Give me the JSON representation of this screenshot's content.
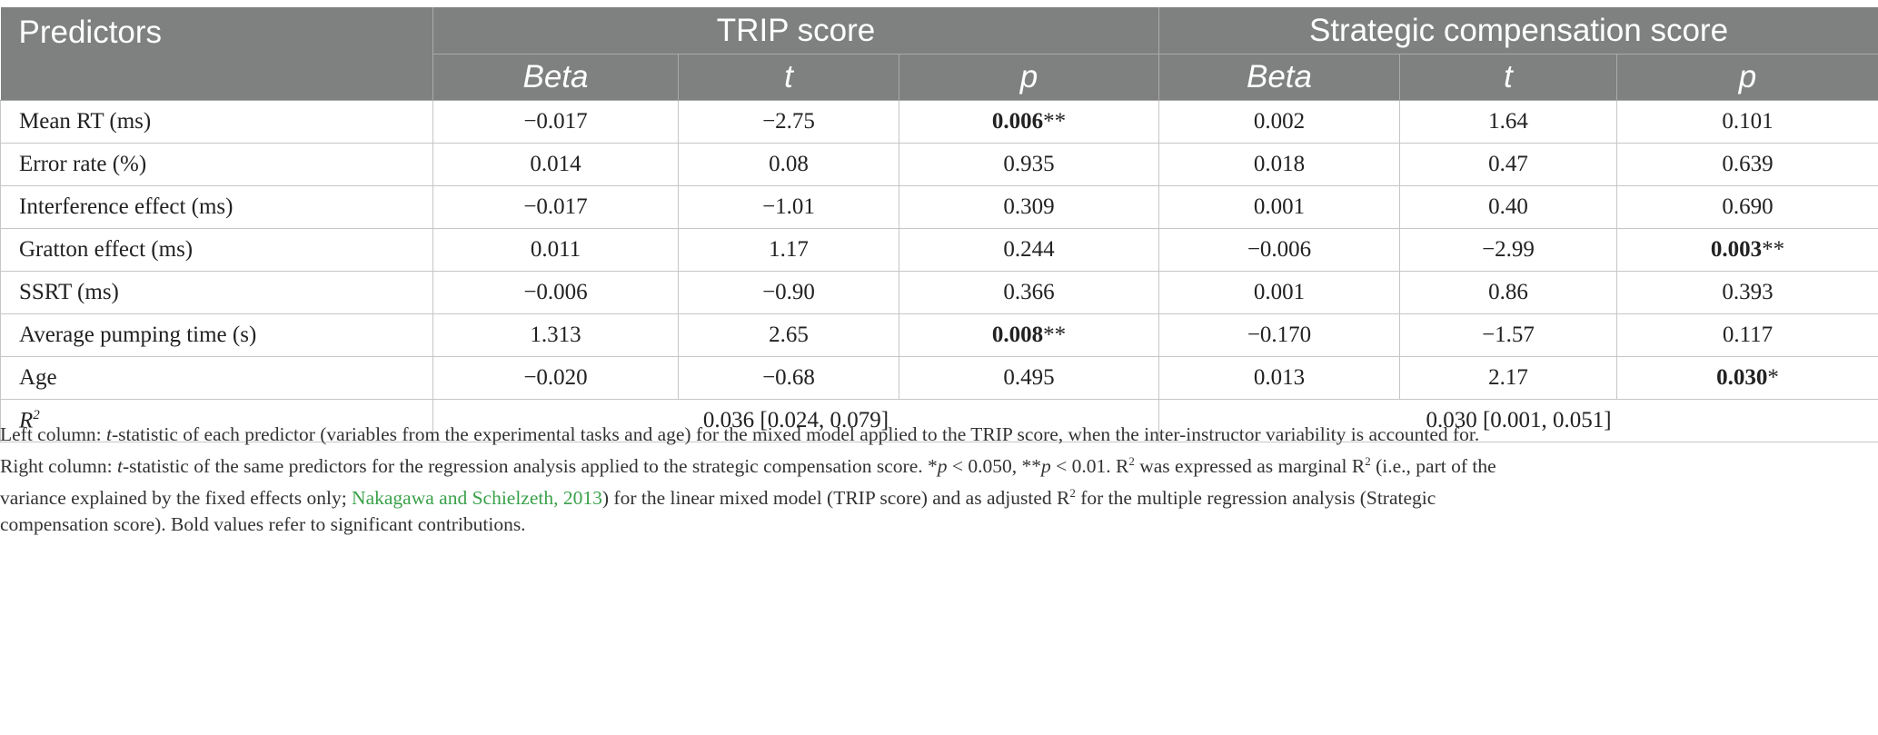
{
  "table": {
    "header": {
      "predictors": "Predictors",
      "group1": "TRIP score",
      "group2": "Strategic compensation score",
      "sub": [
        "Beta",
        "t",
        "p",
        "Beta",
        "t",
        "p"
      ]
    },
    "rows": [
      {
        "label": "Mean RT (ms)",
        "cells": [
          {
            "v": "−0.017"
          },
          {
            "v": "−2.75"
          },
          {
            "v": "0.006",
            "bold": true,
            "sig": "**"
          },
          {
            "v": "0.002"
          },
          {
            "v": "1.64"
          },
          {
            "v": "0.101"
          }
        ]
      },
      {
        "label": "Error rate (%)",
        "cells": [
          {
            "v": "0.014"
          },
          {
            "v": "0.08"
          },
          {
            "v": "0.935"
          },
          {
            "v": "0.018"
          },
          {
            "v": "0.47"
          },
          {
            "v": "0.639"
          }
        ]
      },
      {
        "label": "Interference effect (ms)",
        "cells": [
          {
            "v": "−0.017"
          },
          {
            "v": "−1.01"
          },
          {
            "v": "0.309"
          },
          {
            "v": "0.001"
          },
          {
            "v": "0.40"
          },
          {
            "v": "0.690"
          }
        ]
      },
      {
        "label": "Gratton effect (ms)",
        "cells": [
          {
            "v": "0.011"
          },
          {
            "v": "1.17"
          },
          {
            "v": "0.244"
          },
          {
            "v": "−0.006"
          },
          {
            "v": "−2.99"
          },
          {
            "v": "0.003",
            "bold": true,
            "sig": "**"
          }
        ]
      },
      {
        "label": "SSRT (ms)",
        "cells": [
          {
            "v": "−0.006"
          },
          {
            "v": "−0.90"
          },
          {
            "v": "0.366"
          },
          {
            "v": "0.001"
          },
          {
            "v": "0.86"
          },
          {
            "v": "0.393"
          }
        ]
      },
      {
        "label": "Average pumping time (s)",
        "cells": [
          {
            "v": "1.313"
          },
          {
            "v": "2.65"
          },
          {
            "v": "0.008",
            "bold": true,
            "sig": "**"
          },
          {
            "v": "−0.170"
          },
          {
            "v": "−1.57"
          },
          {
            "v": "0.117"
          }
        ]
      },
      {
        "label": "Age",
        "cells": [
          {
            "v": "−0.020"
          },
          {
            "v": "−0.68"
          },
          {
            "v": "0.495"
          },
          {
            "v": "0.013"
          },
          {
            "v": "2.17"
          },
          {
            "v": "0.030",
            "bold": true,
            "sig": "*"
          }
        ]
      }
    ],
    "r2": {
      "label": "R",
      "sup": "2",
      "trip": "0.036 [0.024, 0.079]",
      "strategic": "0.030 [0.001, 0.051]"
    }
  },
  "note": {
    "p1a": "Left column: ",
    "p1_t": "t",
    "p1b": "-statistic of each predictor (variables from the experimental tasks and age) for the mixed model applied to the TRIP score, when the inter-instructor variability is accounted for.",
    "p2a": "Right column: ",
    "p2_t": "t",
    "p2b": "-statistic of the same predictors for the regression analysis applied to the strategic compensation score. *",
    "p2_p1": "p",
    "p2c": " < 0.050, **",
    "p2_p2": "p",
    "p2d": " < 0.01. R",
    "p2_sup": "2",
    "p2e": " was expressed as marginal R",
    "p2_sup2": "2",
    "p2f": " (i.e., part of the",
    "p3a": "variance explained by the fixed effects only; ",
    "p3_link": "Nakagawa and Schielzeth, 2013",
    "p3b": ") for the linear mixed model (TRIP score) and as adjusted R",
    "p3_sup": "2",
    "p3c": " for the multiple regression analysis (Strategic",
    "p4": "compensation score). Bold values refer to significant contributions."
  }
}
